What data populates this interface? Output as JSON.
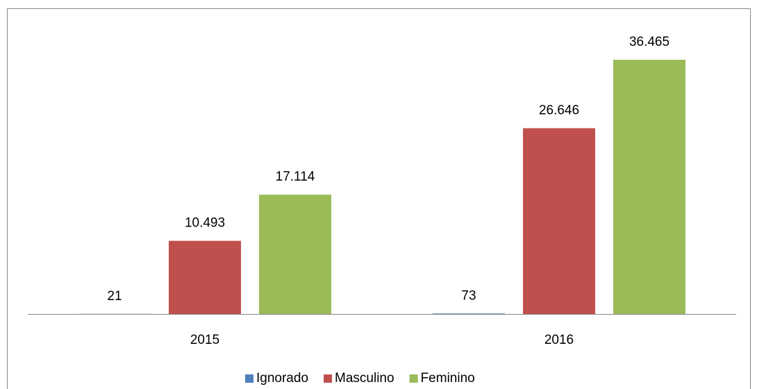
{
  "chart_data": {
    "type": "bar",
    "categories": [
      "2015",
      "2016"
    ],
    "series": [
      {
        "name": "Ignorado",
        "color": "#4f81bd",
        "values": [
          21,
          73
        ],
        "value_labels": [
          "21",
          "73"
        ]
      },
      {
        "name": "Masculino",
        "color": "#c0504d",
        "values": [
          10493,
          26646
        ],
        "value_labels": [
          "10.493",
          "26.646"
        ]
      },
      {
        "name": "Feminino",
        "color": "#9bbb59",
        "values": [
          17114,
          36465
        ],
        "value_labels": [
          "17.114",
          "36.465"
        ]
      }
    ],
    "legend": "bottom"
  }
}
